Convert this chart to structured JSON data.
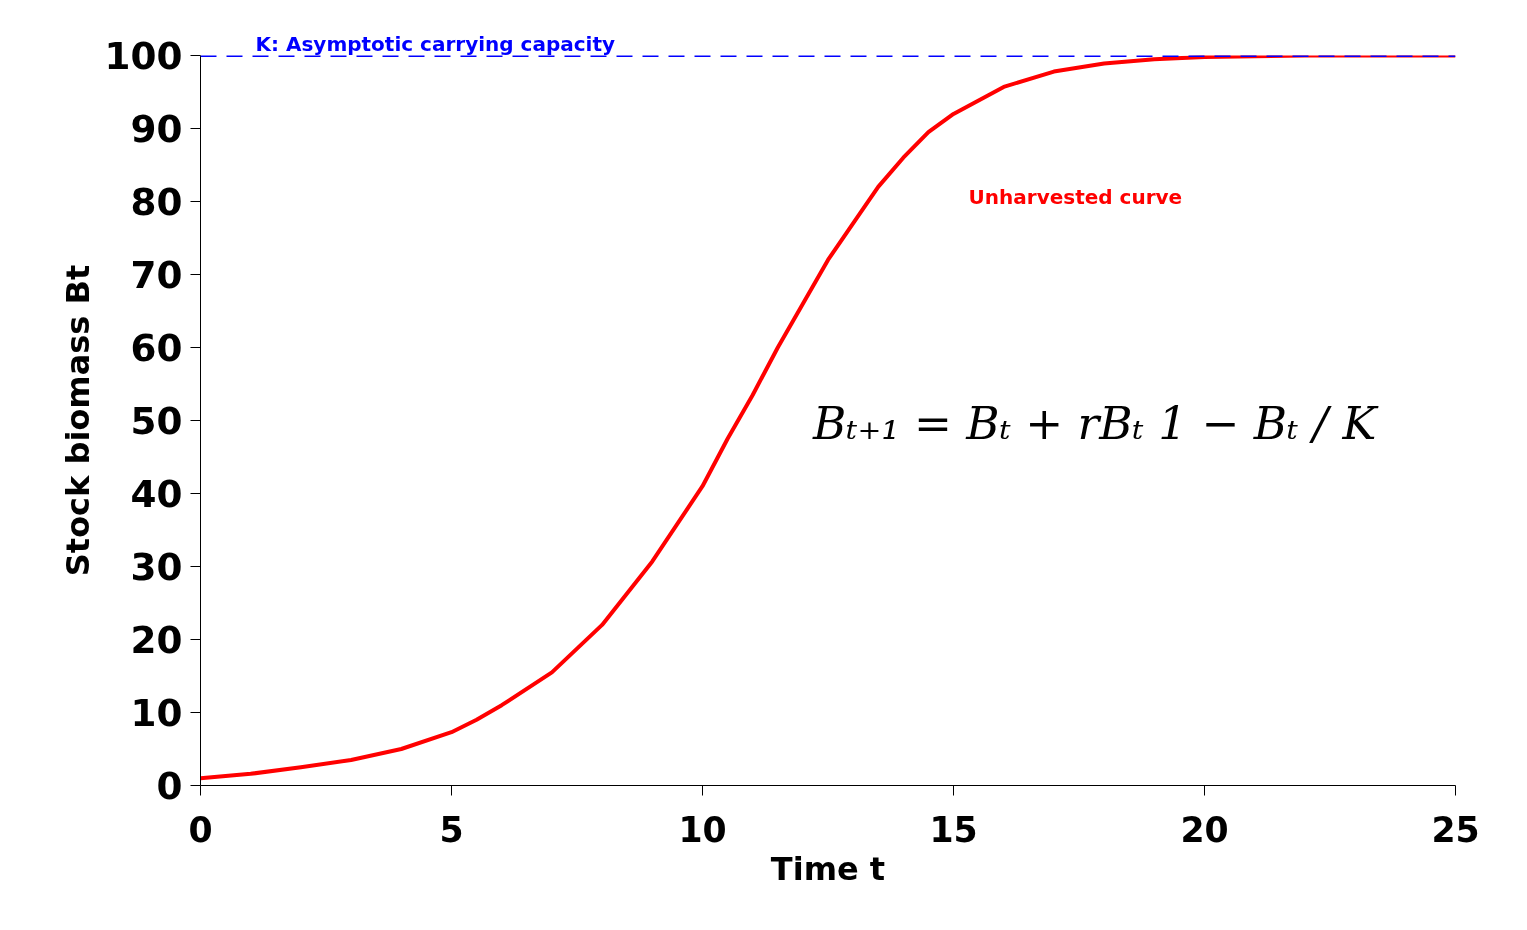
{
  "chart_data": {
    "type": "line",
    "xlabel": "Time t",
    "ylabel": "Stock biomass Bt",
    "xlim": [
      0,
      25
    ],
    "ylim": [
      0,
      100
    ],
    "xticks": [
      0,
      5,
      10,
      15,
      20,
      25
    ],
    "yticks": [
      0,
      10,
      20,
      30,
      40,
      50,
      60,
      70,
      80,
      90,
      100
    ],
    "grid": false,
    "marker": "none",
    "line_style": "solid",
    "series": [
      {
        "name": "Unharvested curve",
        "color": "#ff0000",
        "x": [
          0,
          1,
          2,
          3,
          4,
          5,
          5.5,
          6,
          7,
          8,
          9,
          10,
          10.5,
          11,
          11.5,
          12,
          12.5,
          13,
          13.5,
          14,
          14.5,
          15,
          16,
          17,
          18,
          19,
          20,
          21,
          22,
          25
        ],
        "values": [
          1,
          1.6,
          2.5,
          3.5,
          5,
          7.3,
          9,
          11,
          15.5,
          22,
          30.7,
          41,
          47.5,
          53.5,
          60,
          66,
          72,
          77,
          82,
          86,
          89.5,
          92,
          95.7,
          97.8,
          98.9,
          99.5,
          99.8,
          99.9,
          100,
          100
        ]
      }
    ],
    "ref_lines": [
      {
        "axis": "y",
        "value": 100,
        "label": "K: Asymptotic carrying capacity",
        "color": "#0000ff",
        "line_style": "dashed"
      }
    ],
    "annotations": [
      "Bₜ₊₁ = Bₜ + rBₜ 1 − Bₜ / K"
    ]
  }
}
